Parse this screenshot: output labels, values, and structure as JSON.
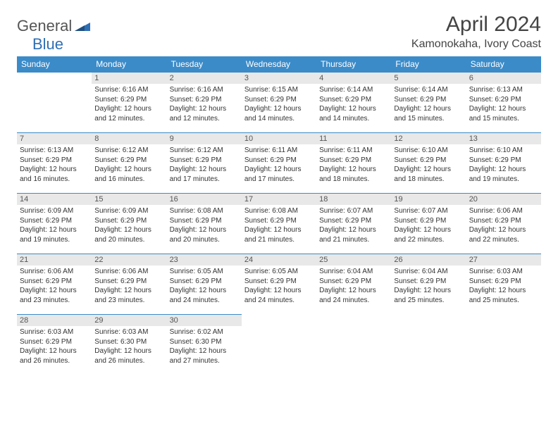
{
  "logo": {
    "part1": "General",
    "part2": "Blue"
  },
  "title": "April 2024",
  "location": "Kamonokaha, Ivory Coast",
  "colors": {
    "header_bg": "#3b8bc9",
    "header_text": "#ffffff",
    "daynum_bg": "#e8e8e8",
    "text": "#333333",
    "logo_blue": "#2f6fb3",
    "background": "#ffffff"
  },
  "weekdays": [
    "Sunday",
    "Monday",
    "Tuesday",
    "Wednesday",
    "Thursday",
    "Friday",
    "Saturday"
  ],
  "weeks": [
    [
      null,
      {
        "n": "1",
        "sr": "Sunrise: 6:16 AM",
        "ss": "Sunset: 6:29 PM",
        "d1": "Daylight: 12 hours",
        "d2": "and 12 minutes."
      },
      {
        "n": "2",
        "sr": "Sunrise: 6:16 AM",
        "ss": "Sunset: 6:29 PM",
        "d1": "Daylight: 12 hours",
        "d2": "and 12 minutes."
      },
      {
        "n": "3",
        "sr": "Sunrise: 6:15 AM",
        "ss": "Sunset: 6:29 PM",
        "d1": "Daylight: 12 hours",
        "d2": "and 14 minutes."
      },
      {
        "n": "4",
        "sr": "Sunrise: 6:14 AM",
        "ss": "Sunset: 6:29 PM",
        "d1": "Daylight: 12 hours",
        "d2": "and 14 minutes."
      },
      {
        "n": "5",
        "sr": "Sunrise: 6:14 AM",
        "ss": "Sunset: 6:29 PM",
        "d1": "Daylight: 12 hours",
        "d2": "and 15 minutes."
      },
      {
        "n": "6",
        "sr": "Sunrise: 6:13 AM",
        "ss": "Sunset: 6:29 PM",
        "d1": "Daylight: 12 hours",
        "d2": "and 15 minutes."
      }
    ],
    [
      {
        "n": "7",
        "sr": "Sunrise: 6:13 AM",
        "ss": "Sunset: 6:29 PM",
        "d1": "Daylight: 12 hours",
        "d2": "and 16 minutes."
      },
      {
        "n": "8",
        "sr": "Sunrise: 6:12 AM",
        "ss": "Sunset: 6:29 PM",
        "d1": "Daylight: 12 hours",
        "d2": "and 16 minutes."
      },
      {
        "n": "9",
        "sr": "Sunrise: 6:12 AM",
        "ss": "Sunset: 6:29 PM",
        "d1": "Daylight: 12 hours",
        "d2": "and 17 minutes."
      },
      {
        "n": "10",
        "sr": "Sunrise: 6:11 AM",
        "ss": "Sunset: 6:29 PM",
        "d1": "Daylight: 12 hours",
        "d2": "and 17 minutes."
      },
      {
        "n": "11",
        "sr": "Sunrise: 6:11 AM",
        "ss": "Sunset: 6:29 PM",
        "d1": "Daylight: 12 hours",
        "d2": "and 18 minutes."
      },
      {
        "n": "12",
        "sr": "Sunrise: 6:10 AM",
        "ss": "Sunset: 6:29 PM",
        "d1": "Daylight: 12 hours",
        "d2": "and 18 minutes."
      },
      {
        "n": "13",
        "sr": "Sunrise: 6:10 AM",
        "ss": "Sunset: 6:29 PM",
        "d1": "Daylight: 12 hours",
        "d2": "and 19 minutes."
      }
    ],
    [
      {
        "n": "14",
        "sr": "Sunrise: 6:09 AM",
        "ss": "Sunset: 6:29 PM",
        "d1": "Daylight: 12 hours",
        "d2": "and 19 minutes."
      },
      {
        "n": "15",
        "sr": "Sunrise: 6:09 AM",
        "ss": "Sunset: 6:29 PM",
        "d1": "Daylight: 12 hours",
        "d2": "and 20 minutes."
      },
      {
        "n": "16",
        "sr": "Sunrise: 6:08 AM",
        "ss": "Sunset: 6:29 PM",
        "d1": "Daylight: 12 hours",
        "d2": "and 20 minutes."
      },
      {
        "n": "17",
        "sr": "Sunrise: 6:08 AM",
        "ss": "Sunset: 6:29 PM",
        "d1": "Daylight: 12 hours",
        "d2": "and 21 minutes."
      },
      {
        "n": "18",
        "sr": "Sunrise: 6:07 AM",
        "ss": "Sunset: 6:29 PM",
        "d1": "Daylight: 12 hours",
        "d2": "and 21 minutes."
      },
      {
        "n": "19",
        "sr": "Sunrise: 6:07 AM",
        "ss": "Sunset: 6:29 PM",
        "d1": "Daylight: 12 hours",
        "d2": "and 22 minutes."
      },
      {
        "n": "20",
        "sr": "Sunrise: 6:06 AM",
        "ss": "Sunset: 6:29 PM",
        "d1": "Daylight: 12 hours",
        "d2": "and 22 minutes."
      }
    ],
    [
      {
        "n": "21",
        "sr": "Sunrise: 6:06 AM",
        "ss": "Sunset: 6:29 PM",
        "d1": "Daylight: 12 hours",
        "d2": "and 23 minutes."
      },
      {
        "n": "22",
        "sr": "Sunrise: 6:06 AM",
        "ss": "Sunset: 6:29 PM",
        "d1": "Daylight: 12 hours",
        "d2": "and 23 minutes."
      },
      {
        "n": "23",
        "sr": "Sunrise: 6:05 AM",
        "ss": "Sunset: 6:29 PM",
        "d1": "Daylight: 12 hours",
        "d2": "and 24 minutes."
      },
      {
        "n": "24",
        "sr": "Sunrise: 6:05 AM",
        "ss": "Sunset: 6:29 PM",
        "d1": "Daylight: 12 hours",
        "d2": "and 24 minutes."
      },
      {
        "n": "25",
        "sr": "Sunrise: 6:04 AM",
        "ss": "Sunset: 6:29 PM",
        "d1": "Daylight: 12 hours",
        "d2": "and 24 minutes."
      },
      {
        "n": "26",
        "sr": "Sunrise: 6:04 AM",
        "ss": "Sunset: 6:29 PM",
        "d1": "Daylight: 12 hours",
        "d2": "and 25 minutes."
      },
      {
        "n": "27",
        "sr": "Sunrise: 6:03 AM",
        "ss": "Sunset: 6:29 PM",
        "d1": "Daylight: 12 hours",
        "d2": "and 25 minutes."
      }
    ],
    [
      {
        "n": "28",
        "sr": "Sunrise: 6:03 AM",
        "ss": "Sunset: 6:29 PM",
        "d1": "Daylight: 12 hours",
        "d2": "and 26 minutes."
      },
      {
        "n": "29",
        "sr": "Sunrise: 6:03 AM",
        "ss": "Sunset: 6:30 PM",
        "d1": "Daylight: 12 hours",
        "d2": "and 26 minutes."
      },
      {
        "n": "30",
        "sr": "Sunrise: 6:02 AM",
        "ss": "Sunset: 6:30 PM",
        "d1": "Daylight: 12 hours",
        "d2": "and 27 minutes."
      },
      null,
      null,
      null,
      null
    ]
  ]
}
